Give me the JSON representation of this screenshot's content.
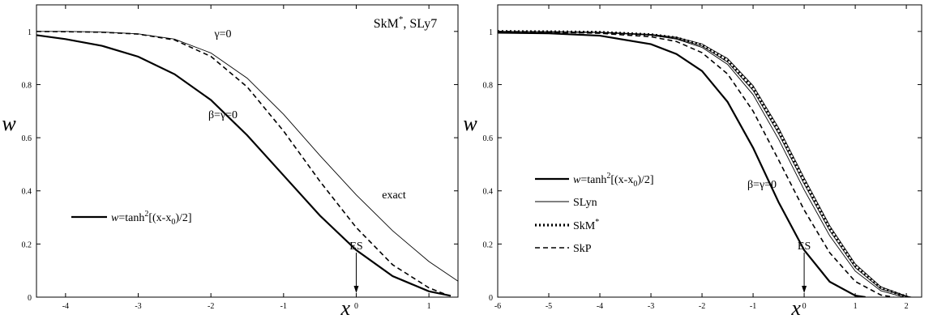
{
  "chart_data": [
    {
      "type": "line",
      "xlim": [
        -4.4,
        1.4
      ],
      "ylim": [
        0,
        1.1
      ],
      "xticks": [
        -4,
        -3,
        -2,
        -1,
        0,
        1
      ],
      "yticks": [
        0,
        0.2,
        0.4,
        0.6,
        0.8,
        1
      ],
      "xtick_labels": [
        "-4",
        "-3",
        "-2",
        "-1",
        "0",
        "1"
      ],
      "ytick_labels": [
        "0",
        "0.2",
        "0.4",
        "0.6",
        "0.8",
        "1"
      ],
      "xlabel": "x",
      "ylabel": "w",
      "corner_label": {
        "main": "SkM",
        "sup": "*",
        "tail": ", SLy7"
      },
      "annotations": {
        "gamma0": "γ=0",
        "beta_gamma0": "β=γ=0",
        "exact": "exact",
        "es": "ES"
      },
      "es_x": 0,
      "legend": [
        {
          "prefix": "w",
          "text": "=tanh",
          "sup": "2",
          "tail": "[(x-x",
          "sub": "0",
          "end": ")/2]"
        }
      ],
      "series": [
        {
          "style": "thick",
          "x": [
            -4.4,
            -4,
            -3.5,
            -3,
            -2.5,
            -2,
            -1.5,
            -1,
            -0.5,
            0,
            0.5,
            1,
            1.3
          ],
          "y": [
            0.986,
            0.971,
            0.946,
            0.905,
            0.839,
            0.742,
            0.609,
            0.458,
            0.307,
            0.177,
            0.079,
            0.022,
            0.005
          ]
        },
        {
          "style": "dashed",
          "x": [
            -4.4,
            -4,
            -3.5,
            -3,
            -2.5,
            -2,
            -1.5,
            -1,
            -0.5,
            0,
            0.5,
            1,
            1.25
          ],
          "y": [
            1.0,
            0.999,
            0.997,
            0.99,
            0.968,
            0.906,
            0.791,
            0.625,
            0.436,
            0.262,
            0.122,
            0.035,
            0.008
          ]
        },
        {
          "style": "thin",
          "x": [
            -4.4,
            -4,
            -3.5,
            -3,
            -2.5,
            -2,
            -1.5,
            -1,
            -0.5,
            0,
            0.5,
            1,
            1.4
          ],
          "y": [
            1.0,
            1.0,
            0.998,
            0.991,
            0.971,
            0.919,
            0.824,
            0.688,
            0.533,
            0.385,
            0.25,
            0.134,
            0.06
          ]
        }
      ]
    },
    {
      "type": "line",
      "xlim": [
        -6,
        2.3
      ],
      "ylim": [
        0,
        1.1
      ],
      "xticks": [
        -6,
        -5,
        -4,
        -3,
        -2,
        -1,
        0,
        1,
        2
      ],
      "yticks": [
        0,
        0.2,
        0.4,
        0.6,
        0.8,
        1
      ],
      "xtick_labels": [
        "-6",
        "-5",
        "-4",
        "-3",
        "-2",
        "-1",
        "0",
        "1",
        "2"
      ],
      "ytick_labels": [
        "0",
        "0.2",
        "0.4",
        "0.6",
        "0.8",
        "1"
      ],
      "xlabel": "x",
      "ylabel": "w",
      "annotations": {
        "beta_gamma0": "β=γ=0",
        "es": "ES"
      },
      "es_x": 0,
      "legend": [
        {
          "prefix": "w",
          "text": "=tanh",
          "sup": "2",
          "tail": "[(x-x",
          "sub": "0",
          "end": ")/2]",
          "style": "thick"
        },
        {
          "text": "SLyn",
          "style": "thin"
        },
        {
          "text": "SkM",
          "sup": "*",
          "style": "dotted"
        },
        {
          "text": "SkP",
          "style": "dashed"
        }
      ],
      "series": [
        {
          "style": "thick",
          "x": [
            -6,
            -5,
            -4,
            -3,
            -2.5,
            -2,
            -1.5,
            -1,
            -0.5,
            0,
            0.5,
            1,
            1.2
          ],
          "y": [
            0.995,
            0.993,
            0.984,
            0.952,
            0.915,
            0.851,
            0.735,
            0.562,
            0.357,
            0.177,
            0.058,
            0.006,
            0.0
          ]
        },
        {
          "style": "dashed",
          "x": [
            -6,
            -5,
            -4,
            -3,
            -2.5,
            -2,
            -1.5,
            -1,
            -0.5,
            0,
            0.5,
            1,
            1.5,
            1.75
          ],
          "y": [
            1.0,
            0.998,
            0.993,
            0.98,
            0.962,
            0.92,
            0.84,
            0.7,
            0.516,
            0.328,
            0.167,
            0.059,
            0.008,
            0.0
          ]
        },
        {
          "style": "thin",
          "x": [
            -6,
            -5,
            -4,
            -3,
            -2.5,
            -2,
            -1.5,
            -1,
            -0.5,
            0,
            0.5,
            1,
            1.5,
            2,
            2.1
          ],
          "y": [
            1.0,
            0.999,
            0.997,
            0.989,
            0.978,
            0.953,
            0.898,
            0.796,
            0.637,
            0.449,
            0.269,
            0.125,
            0.039,
            0.004,
            0.0
          ]
        },
        {
          "style": "thin",
          "x": [
            -6,
            -5,
            -4,
            -3,
            -2.5,
            -2,
            -1.5,
            -1,
            -0.5,
            0,
            0.5,
            1,
            1.5,
            2,
            2.05
          ],
          "y": [
            1.0,
            0.999,
            0.996,
            0.987,
            0.974,
            0.945,
            0.885,
            0.778,
            0.615,
            0.426,
            0.25,
            0.111,
            0.031,
            0.002,
            0.0
          ]
        },
        {
          "style": "thin",
          "x": [
            -6,
            -5,
            -4,
            -3,
            -2.5,
            -2,
            -1.5,
            -1,
            -0.5,
            0,
            0.5,
            1,
            1.5,
            1.95
          ],
          "y": [
            1.0,
            0.999,
            0.996,
            0.986,
            0.971,
            0.94,
            0.876,
            0.762,
            0.594,
            0.404,
            0.231,
            0.098,
            0.024,
            0.0
          ]
        },
        {
          "style": "dotted",
          "x": [
            -6,
            -5,
            -4,
            -3,
            -2.5,
            -2,
            -1.5,
            -1,
            -0.5,
            0,
            0.5,
            1,
            1.5,
            2,
            2.02
          ],
          "y": [
            1.0,
            0.999,
            0.997,
            0.988,
            0.976,
            0.949,
            0.891,
            0.787,
            0.626,
            0.437,
            0.259,
            0.118,
            0.035,
            0.002,
            0.0
          ]
        }
      ]
    }
  ]
}
